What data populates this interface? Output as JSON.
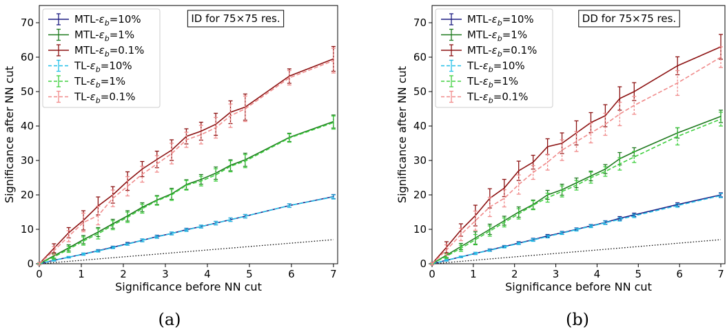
{
  "figure": {
    "panels": [
      {
        "caption": "(a)",
        "annotation": "ID for 75×75 res.",
        "xlabel": "Significance before NN cut",
        "ylabel": "Significance after NN cut"
      },
      {
        "caption": "(b)",
        "annotation": "DD for 75×75 res.",
        "xlabel": "Significance before NN cut",
        "ylabel": "Significance after NN cut"
      }
    ]
  },
  "chart_data": [
    {
      "type": "line",
      "title": "",
      "annotation": "ID for 75×75 res.",
      "xlabel": "Significance before NN cut",
      "ylabel": "Significance after NN cut",
      "xlim": [
        0,
        7.1
      ],
      "ylim": [
        0,
        75
      ],
      "xticks": [
        0,
        1,
        2,
        3,
        4,
        5,
        6,
        7
      ],
      "yticks": [
        0,
        10,
        20,
        30,
        40,
        50,
        60,
        70
      ],
      "legend_position": "upper-left",
      "grid": false,
      "x": [
        0,
        0.35,
        0.7,
        1.05,
        1.4,
        1.75,
        2.1,
        2.45,
        2.8,
        3.15,
        3.5,
        3.85,
        4.2,
        4.55,
        4.9,
        5.95,
        7.0
      ],
      "reference_line": {
        "style": "dotted",
        "color": "#000000",
        "x": [
          0,
          7
        ],
        "y": [
          0,
          7
        ]
      },
      "series": [
        {
          "name": "MTL-εb=10%",
          "label_main": "MTL-",
          "label_sub": "b",
          "label_tail": "=10%",
          "style": "solid",
          "color": "#1a1a80",
          "values": [
            0,
            1.0,
            1.9,
            2.8,
            3.8,
            4.8,
            5.8,
            6.8,
            7.9,
            8.8,
            9.9,
            10.8,
            11.8,
            12.8,
            13.8,
            16.9,
            19.5
          ],
          "errors": [
            0.1,
            0.2,
            0.2,
            0.3,
            0.3,
            0.3,
            0.4,
            0.4,
            0.4,
            0.4,
            0.4,
            0.4,
            0.5,
            0.5,
            0.5,
            0.5,
            0.6
          ]
        },
        {
          "name": "MTL-εb=1%",
          "label_main": "MTL-",
          "label_sub": "b",
          "label_tail": "=1%",
          "style": "solid",
          "color": "#1e7a1e",
          "values": [
            0,
            2.3,
            4.6,
            7.0,
            9.2,
            11.6,
            13.9,
            16.4,
            18.5,
            20.3,
            23.0,
            24.5,
            26.3,
            28.6,
            30.2,
            36.7,
            41.3
          ],
          "errors": [
            0.2,
            0.7,
            0.9,
            1.2,
            1.3,
            1.3,
            1.5,
            1.3,
            1.3,
            1.6,
            1.4,
            1.4,
            1.8,
            1.6,
            1.9,
            1.2,
            1.9
          ]
        },
        {
          "name": "MTL-εb=0.1%",
          "label_main": "MTL-",
          "label_sub": "b",
          "label_tail": "=0.1%",
          "style": "solid",
          "color": "#8b1010",
          "values": [
            0,
            4.5,
            9.0,
            12.6,
            16.8,
            20.0,
            24.0,
            27.5,
            30.3,
            33.0,
            37.0,
            38.5,
            40.5,
            44.0,
            45.5,
            54.5,
            59.5
          ],
          "errors": [
            0.3,
            1.3,
            1.5,
            2.8,
            2.6,
            2.4,
            2.7,
            2.2,
            2.4,
            3.0,
            2.2,
            2.6,
            3.2,
            3.3,
            3.8,
            2.1,
            3.6
          ]
        },
        {
          "name": "TL-εb=10%",
          "label_main": "TL-",
          "label_sub": "b",
          "label_tail": "=10%",
          "style": "dashed",
          "color": "#22bfe8",
          "values": [
            0,
            1.0,
            1.9,
            2.8,
            3.7,
            4.7,
            5.7,
            6.8,
            7.8,
            8.8,
            9.8,
            10.8,
            11.8,
            12.8,
            13.8,
            16.9,
            19.4
          ],
          "errors": [
            0.1,
            0.2,
            0.2,
            0.3,
            0.3,
            0.3,
            0.3,
            0.4,
            0.4,
            0.4,
            0.4,
            0.4,
            0.5,
            0.5,
            0.5,
            0.5,
            0.6
          ]
        },
        {
          "name": "TL-εb=1%",
          "label_main": "TL-",
          "label_sub": "b",
          "label_tail": "=1%",
          "style": "dashed",
          "color": "#3ecf3e",
          "values": [
            0,
            2.0,
            4.2,
            6.6,
            8.7,
            11.2,
            13.5,
            16.0,
            18.3,
            20.0,
            22.8,
            24.0,
            25.8,
            28.3,
            29.8,
            36.5,
            41.0
          ],
          "errors": [
            0.2,
            0.7,
            0.9,
            1.2,
            1.5,
            1.3,
            1.5,
            1.3,
            1.3,
            1.6,
            1.4,
            1.4,
            1.8,
            1.6,
            1.9,
            1.2,
            1.9
          ]
        },
        {
          "name": "TL-εb=0.1%",
          "label_main": "TL-",
          "label_sub": "b",
          "label_tail": "=0.1%",
          "style": "dashed",
          "color": "#f08a8a",
          "values": [
            0,
            3.8,
            8.0,
            12.0,
            14.0,
            19.0,
            22.5,
            26.0,
            29.0,
            32.0,
            36.0,
            37.5,
            39.5,
            43.0,
            45.0,
            54.0,
            59.0
          ],
          "errors": [
            0.3,
            1.2,
            1.6,
            2.7,
            2.7,
            2.4,
            2.8,
            2.3,
            2.4,
            3.0,
            2.2,
            2.7,
            3.0,
            3.4,
            3.7,
            2.1,
            3.6
          ]
        }
      ]
    },
    {
      "type": "line",
      "title": "",
      "annotation": "DD for 75×75 res.",
      "xlabel": "Significance before NN cut",
      "ylabel": "Significance after NN cut",
      "xlim": [
        0,
        7.1
      ],
      "ylim": [
        0,
        75
      ],
      "xticks": [
        0,
        1,
        2,
        3,
        4,
        5,
        6,
        7
      ],
      "yticks": [
        0,
        10,
        20,
        30,
        40,
        50,
        60,
        70
      ],
      "legend_position": "upper-left",
      "grid": false,
      "x": [
        0,
        0.35,
        0.7,
        1.05,
        1.4,
        1.75,
        2.1,
        2.45,
        2.8,
        3.15,
        3.5,
        3.85,
        4.2,
        4.55,
        4.9,
        5.95,
        7.0
      ],
      "reference_line": {
        "style": "dotted",
        "color": "#000000",
        "x": [
          0,
          7
        ],
        "y": [
          0,
          7
        ]
      },
      "series": [
        {
          "name": "MTL-εb=10%",
          "label_main": "MTL-",
          "label_sub": "b",
          "label_tail": "=10%",
          "style": "solid",
          "color": "#1a1a80",
          "values": [
            0,
            1.0,
            2.0,
            3.0,
            4.0,
            5.0,
            6.0,
            7.0,
            8.1,
            9.0,
            10.0,
            11.0,
            12.0,
            13.2,
            14.2,
            17.2,
            20.0
          ],
          "errors": [
            0.1,
            0.2,
            0.2,
            0.3,
            0.3,
            0.3,
            0.4,
            0.4,
            0.4,
            0.4,
            0.4,
            0.4,
            0.5,
            0.5,
            0.5,
            0.5,
            0.6
          ]
        },
        {
          "name": "MTL-εb=1%",
          "label_main": "MTL-",
          "label_sub": "b",
          "label_tail": "=1%",
          "style": "solid",
          "color": "#1e7a1e",
          "values": [
            0,
            2.5,
            5.0,
            7.5,
            10.0,
            12.5,
            15.0,
            17.2,
            20.0,
            21.5,
            23.5,
            25.5,
            27.5,
            30.5,
            32.5,
            38.0,
            42.8
          ],
          "errors": [
            0.2,
            0.7,
            0.9,
            1.8,
            1.5,
            1.3,
            1.5,
            1.3,
            1.3,
            1.6,
            1.4,
            1.4,
            1.3,
            1.8,
            1.2,
            1.5,
            1.8
          ]
        },
        {
          "name": "MTL-εb=0.1%",
          "label_main": "MTL-",
          "label_sub": "b",
          "label_tail": "=0.1%",
          "style": "solid",
          "color": "#8b1010",
          "values": [
            0,
            4.8,
            9.8,
            14.0,
            19.0,
            22.0,
            27.0,
            29.5,
            34.0,
            35.0,
            38.0,
            41.0,
            43.0,
            48.0,
            50.0,
            57.5,
            63.0
          ],
          "errors": [
            0.3,
            1.6,
            1.8,
            3.0,
            2.8,
            2.5,
            2.8,
            2.0,
            2.3,
            3.0,
            3.5,
            2.9,
            3.2,
            3.4,
            2.6,
            2.6,
            3.6
          ]
        },
        {
          "name": "TL-εb=10%",
          "label_main": "TL-",
          "label_sub": "b",
          "label_tail": "=10%",
          "style": "dashed",
          "color": "#22bfe8",
          "values": [
            0,
            1.0,
            2.0,
            3.0,
            3.9,
            4.9,
            5.9,
            6.9,
            7.9,
            8.9,
            9.9,
            10.9,
            11.9,
            12.9,
            13.9,
            16.9,
            19.8
          ],
          "errors": [
            0.1,
            0.2,
            0.2,
            0.3,
            0.3,
            0.3,
            0.3,
            0.4,
            0.4,
            0.4,
            0.4,
            0.4,
            0.5,
            0.5,
            0.5,
            0.5,
            0.6
          ]
        },
        {
          "name": "TL-εb=1%",
          "label_main": "TL-",
          "label_sub": "b",
          "label_tail": "=1%",
          "style": "dashed",
          "color": "#3ecf3e",
          "values": [
            0,
            2.2,
            4.5,
            7.0,
            9.5,
            12.0,
            14.5,
            17.0,
            19.2,
            21.0,
            22.8,
            25.0,
            26.8,
            29.0,
            31.0,
            37.0,
            42.0
          ],
          "errors": [
            0.2,
            0.7,
            0.9,
            1.5,
            1.5,
            1.3,
            1.5,
            1.3,
            1.3,
            1.6,
            1.4,
            1.6,
            1.4,
            1.8,
            1.6,
            2.5,
            2.0
          ]
        },
        {
          "name": "TL-εb=0.1%",
          "label_main": "TL-",
          "label_sub": "b",
          "label_tail": "=0.1%",
          "style": "dashed",
          "color": "#f08a8a",
          "values": [
            0,
            4.0,
            8.5,
            12.5,
            16.5,
            19.0,
            23.0,
            26.5,
            29.5,
            33.0,
            35.5,
            38.0,
            40.5,
            43.5,
            46.0,
            52.5,
            60.0
          ],
          "errors": [
            0.3,
            1.5,
            1.8,
            2.8,
            2.8,
            2.5,
            2.8,
            2.0,
            2.3,
            3.0,
            2.9,
            2.9,
            3.2,
            3.4,
            2.6,
            3.6,
            3.0
          ]
        }
      ]
    }
  ]
}
